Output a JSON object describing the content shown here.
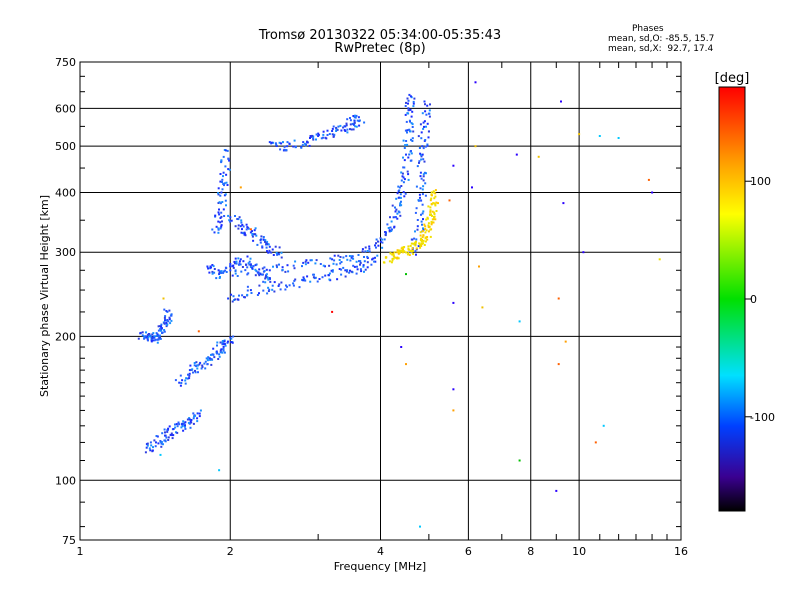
{
  "header": {
    "title": "Tromsø 20130322 05:34:00-05:35:43",
    "subtitle": "RwPretec (8p)",
    "phase_title": "Phases",
    "phase_o": "mean, sd,O: -85.5, 15.7",
    "phase_x": "mean, sd,X:  92.7, 17.4"
  },
  "chart_data": {
    "type": "scatter",
    "title": "Tromsø 20130322 05:34:00-05:35:43",
    "subtitle": "RwPretec (8p)",
    "xlabel": "Frequency [MHz]",
    "ylabel": "Stationary phase Virtual Height [km]",
    "xscale": "log",
    "yscale": "log",
    "xlim": [
      1,
      16
    ],
    "ylim": [
      75,
      750
    ],
    "xticks": [
      1,
      2,
      4,
      6,
      8,
      10,
      16
    ],
    "xtick_labels": [
      "1",
      "2",
      "4",
      "6",
      "8",
      "10",
      "16"
    ],
    "yticks": [
      75,
      100,
      200,
      300,
      400,
      500,
      600,
      750
    ],
    "ytick_labels": [
      "75",
      "100",
      "200",
      "300",
      "400",
      "500",
      "600",
      "750"
    ],
    "grid": true,
    "colorbar": {
      "label": "[deg]",
      "min": -180,
      "max": 180,
      "ticks": [
        100,
        0,
        -100
      ],
      "tick_labels": [
        "100",
        "0",
        "-100"
      ]
    },
    "series": [
      {
        "name": "O-mode (approx. -85.5°)",
        "color": "#1a3cff",
        "segments": [
          [
            [
              1.32,
              203
            ],
            [
              1.36,
              199
            ],
            [
              1.4,
              199
            ],
            [
              1.43,
              202
            ],
            [
              1.46,
              208
            ],
            [
              1.48,
              216
            ],
            [
              1.49,
              226
            ]
          ],
          [
            [
              1.36,
              117
            ],
            [
              1.42,
              120
            ],
            [
              1.48,
              124
            ],
            [
              1.54,
              128
            ],
            [
              1.6,
              131
            ],
            [
              1.66,
              134
            ],
            [
              1.72,
              138
            ]
          ],
          [
            [
              1.58,
              160
            ],
            [
              1.66,
              170
            ],
            [
              1.74,
              176
            ],
            [
              1.82,
              180
            ],
            [
              1.88,
              186
            ],
            [
              1.94,
              193
            ],
            [
              2.0,
              199
            ]
          ],
          [
            [
              1.8,
              280
            ],
            [
              1.9,
              270
            ],
            [
              2.0,
              280
            ],
            [
              2.1,
              290
            ],
            [
              2.2,
              283
            ],
            [
              2.3,
              270
            ],
            [
              2.4,
              265
            ]
          ],
          [
            [
              1.86,
              330
            ],
            [
              1.9,
              360
            ],
            [
              1.92,
              400
            ],
            [
              1.94,
              440
            ],
            [
              1.96,
              490
            ]
          ],
          [
            [
              2.0,
              355
            ],
            [
              2.1,
              340
            ],
            [
              2.2,
              330
            ],
            [
              2.3,
              318
            ],
            [
              2.4,
              308
            ],
            [
              2.5,
              298
            ]
          ],
          [
            [
              1.98,
              240
            ],
            [
              2.2,
              250
            ],
            [
              2.5,
              255
            ],
            [
              2.8,
              262
            ],
            [
              3.1,
              268
            ],
            [
              3.4,
              275
            ],
            [
              3.7,
              282
            ],
            [
              3.9,
              292
            ]
          ],
          [
            [
              2.0,
              275
            ],
            [
              2.4,
              275
            ],
            [
              2.8,
              285
            ],
            [
              3.2,
              290
            ],
            [
              3.5,
              292
            ],
            [
              3.8,
              305
            ]
          ],
          [
            [
              2.4,
              510
            ],
            [
              2.6,
              500
            ],
            [
              2.8,
              510
            ],
            [
              3.0,
              525
            ],
            [
              3.2,
              538
            ],
            [
              3.4,
              550
            ],
            [
              3.55,
              565
            ],
            [
              3.62,
              575
            ]
          ],
          [
            [
              3.9,
              310
            ],
            [
              4.1,
              330
            ],
            [
              4.25,
              355
            ],
            [
              4.35,
              390
            ],
            [
              4.45,
              430
            ],
            [
              4.5,
              480
            ],
            [
              4.53,
              540
            ],
            [
              4.55,
              600
            ],
            [
              4.57,
              640
            ]
          ],
          [
            [
              4.6,
              300
            ],
            [
              4.75,
              340
            ],
            [
              4.8,
              390
            ],
            [
              4.82,
              440
            ],
            [
              4.85,
              500
            ],
            [
              4.88,
              560
            ],
            [
              4.9,
              620
            ]
          ]
        ]
      },
      {
        "name": "X-mode (approx. 92.7°)",
        "color": "#f0e000",
        "segments": [
          [
            [
              4.1,
              292
            ],
            [
              4.25,
              296
            ],
            [
              4.4,
              302
            ],
            [
              4.55,
              305
            ],
            [
              4.7,
              310
            ],
            [
              4.82,
              318
            ],
            [
              4.92,
              330
            ],
            [
              5.0,
              345
            ],
            [
              5.05,
              360
            ],
            [
              5.1,
              380
            ],
            [
              5.12,
              400
            ]
          ]
        ]
      }
    ],
    "scatter_points": [
      [
        6.2,
        680,
        "#2a00ff"
      ],
      [
        9.2,
        620,
        "#2a00ff"
      ],
      [
        11.0,
        525,
        "#00c8ff"
      ],
      [
        12.0,
        520,
        "#00c8ff"
      ],
      [
        7.5,
        480,
        "#2a00ff"
      ],
      [
        8.3,
        475,
        "#f0c000"
      ],
      [
        10.0,
        530,
        "#f0c000"
      ],
      [
        5.6,
        455,
        "#2a00ff"
      ],
      [
        6.1,
        410,
        "#2a00ff"
      ],
      [
        9.3,
        380,
        "#2a00ff"
      ],
      [
        13.8,
        425,
        "#ff6000"
      ],
      [
        14.0,
        400,
        "#2a00ff"
      ],
      [
        2.1,
        410,
        "#ffa000"
      ],
      [
        2.2,
        335,
        "#ff6000"
      ],
      [
        3.2,
        225,
        "#ff0000"
      ],
      [
        4.5,
        270,
        "#00c000"
      ],
      [
        5.6,
        235,
        "#2a00ff"
      ],
      [
        6.3,
        280,
        "#ffa000"
      ],
      [
        7.6,
        215,
        "#00c8ff"
      ],
      [
        9.1,
        240,
        "#ff6000"
      ],
      [
        9.4,
        195,
        "#ffa000"
      ],
      [
        10.2,
        300,
        "#2a00ff"
      ],
      [
        14.5,
        290,
        "#f0e000"
      ],
      [
        4.4,
        190,
        "#2a00ff"
      ],
      [
        4.5,
        175,
        "#ffa000"
      ],
      [
        5.6,
        140,
        "#ffa000"
      ],
      [
        5.6,
        155,
        "#2a00ff"
      ],
      [
        7.6,
        110,
        "#00c000"
      ],
      [
        9.0,
        95,
        "#2a00ff"
      ],
      [
        10.8,
        120,
        "#ff6000"
      ],
      [
        11.2,
        130,
        "#00c8ff"
      ],
      [
        4.8,
        80,
        "#00c8ff"
      ],
      [
        1.9,
        105,
        "#00c8ff"
      ],
      [
        1.45,
        113,
        "#00c8ff"
      ],
      [
        1.47,
        240,
        "#f0c000"
      ],
      [
        1.73,
        205,
        "#ff6000"
      ],
      [
        6.2,
        500,
        "#f0c000"
      ],
      [
        9.1,
        175,
        "#ff6000"
      ],
      [
        5.5,
        385,
        "#ff6000"
      ],
      [
        6.4,
        230,
        "#f0c000"
      ]
    ]
  }
}
